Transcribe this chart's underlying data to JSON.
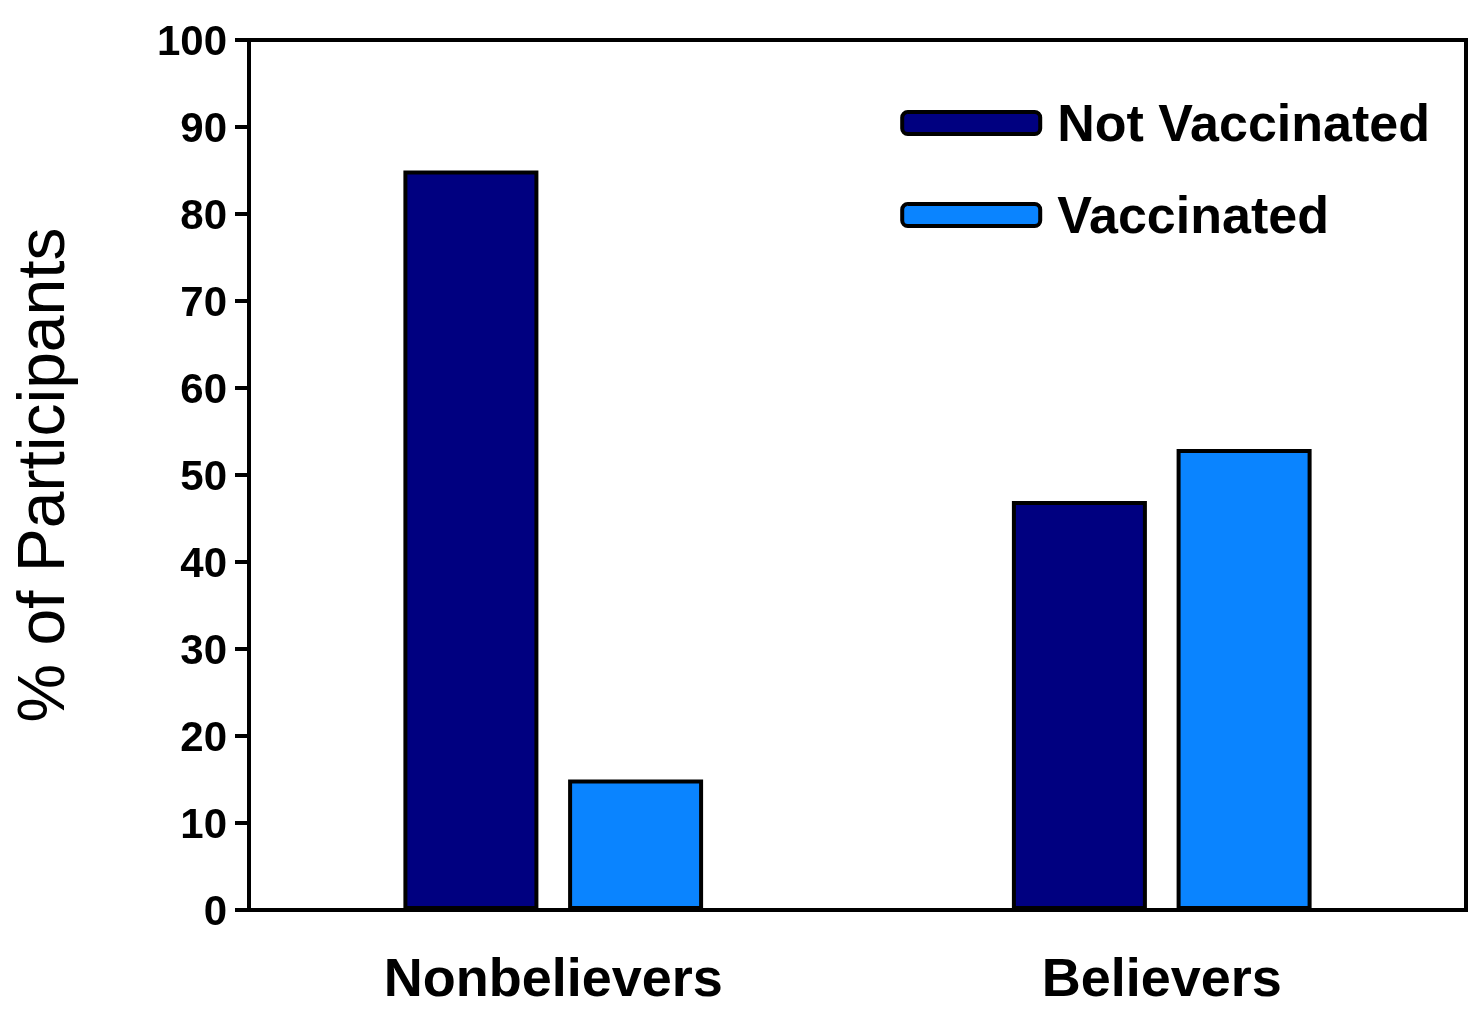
{
  "chart_data": {
    "type": "bar",
    "ylabel": "% of Participants",
    "categories": [
      "Nonbelievers",
      "Believers"
    ],
    "series": [
      {
        "name": "Not Vaccinated",
        "color": "#000080",
        "values": [
          85,
          47
        ]
      },
      {
        "name": "Vaccinated",
        "color": "#0a84ff",
        "values": [
          15,
          53
        ]
      }
    ],
    "ylim": [
      0,
      100
    ],
    "yticks": [
      0,
      10,
      20,
      30,
      40,
      50,
      60,
      70,
      80,
      90,
      100
    ],
    "grid": false,
    "legend": "top right"
  }
}
